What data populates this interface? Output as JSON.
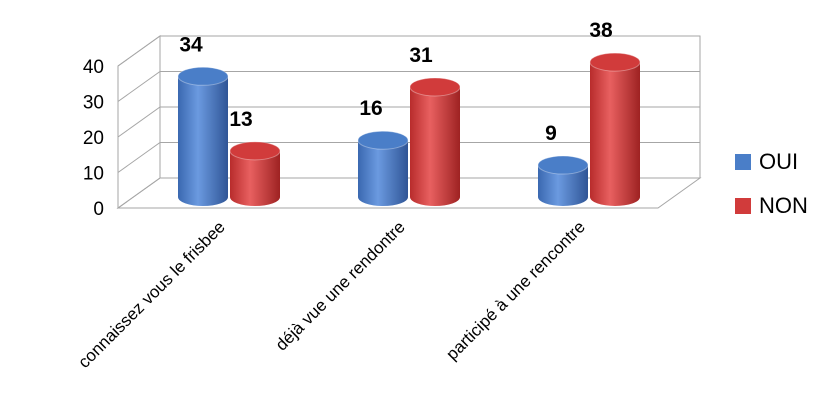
{
  "chart_data": {
    "type": "bar",
    "title": "",
    "xlabel": "",
    "ylabel": "",
    "ylim": [
      0,
      40
    ],
    "yticks": [
      0,
      10,
      20,
      30,
      40
    ],
    "categories": [
      "connaissez vous le frisbee",
      "déjà vue une rendontre",
      "participé à une rencontre"
    ],
    "series": [
      {
        "name": "OUI",
        "values": [
          34,
          16,
          9
        ],
        "color": "#4a7ec8"
      },
      {
        "name": "NON",
        "values": [
          13,
          31,
          38
        ],
        "color": "#d13b3b"
      }
    ],
    "legend_position": "right",
    "style": "3d-cylinder",
    "grid": true
  }
}
